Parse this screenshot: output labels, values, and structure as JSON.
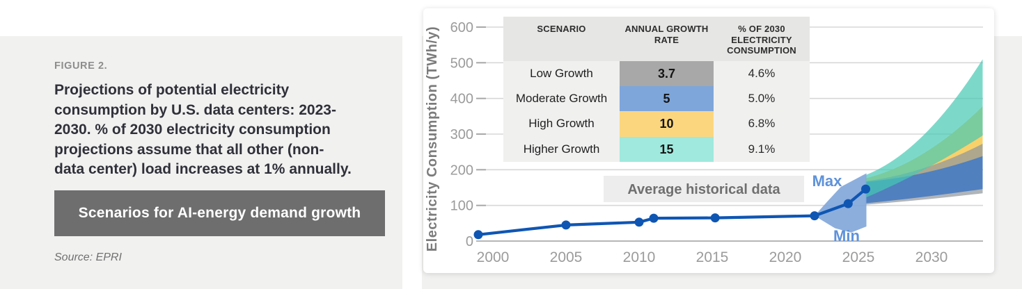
{
  "left_panel": {
    "figure_label": "FIGURE 2.",
    "title": "Projections of potential electricity\nconsumption by U.S. data centers: 2023-\n2030. % of 2030 electricity consumption\nprojections assume that all other (non-\ndata center) load increases at 1% annually.",
    "banner": "Scenarios for AI-energy demand growth",
    "source": "Source: EPRI"
  },
  "table": {
    "headers": [
      "SCENARIO",
      "ANNUAL GROWTH RATE",
      "% OF 2030 ELECTRICITY CONSUMPTION"
    ]
  },
  "labels": {
    "max": "Max",
    "min": "Min",
    "avg_historical": "Average historical data"
  },
  "colors": {
    "page_panel": "#f1f1f0",
    "card": "#ffffff",
    "gridline": "#d7d7d7",
    "axis_line": "#b6b6b6",
    "tick_text": "#9b9b9b",
    "axis_title_text": "#7c7c7c",
    "minmax_label_text": "#5e92da",
    "avg_box_bg": "#ededed",
    "avg_box_text": "#6f6f6f",
    "table_header_bg": "#e6e6e4",
    "table_body_bg": "#f0f0ef"
  },
  "chart_data": {
    "type": "line",
    "title": "",
    "xlabel": "",
    "ylabel": "Electricity Consumption (TWh/y)",
    "ylim": [
      0,
      600
    ],
    "yticks": [
      0,
      100,
      200,
      300,
      400,
      500,
      600
    ],
    "xticks": [
      2000,
      2005,
      2010,
      2015,
      2020,
      2025,
      2030
    ],
    "xlim": [
      1998.8,
      2033.5
    ],
    "grid": "horizontal",
    "legend_position": "none",
    "historical_series": {
      "name": "Average historical data",
      "color": "#0f56b3",
      "points": [
        [
          1999,
          18
        ],
        [
          2005,
          45
        ],
        [
          2010,
          53
        ],
        [
          2011,
          64
        ],
        [
          2015.2,
          65
        ],
        [
          2022,
          71
        ],
        [
          2024.3,
          105
        ],
        [
          2025.5,
          146
        ]
      ]
    },
    "minmax_envelope": {
      "color": "#82a7da",
      "opacity": 0.92,
      "label_max": "Max",
      "label_min": "Min",
      "points": [
        [
          2022,
          71
        ],
        [
          2022.9,
          112
        ],
        [
          2023.8,
          152
        ],
        [
          2025.0,
          178
        ],
        [
          2025.55,
          190
        ],
        [
          2025.55,
          41
        ],
        [
          2024.5,
          24
        ],
        [
          2023.4,
          36
        ]
      ]
    },
    "fan_start_year": 2025.5,
    "fan_end_year": 2033.5,
    "scenarios": [
      {
        "name": "Low Growth",
        "rate": "3.7",
        "pct_of_2030": "4.6%",
        "band_color": "#8e969c",
        "band_opacity": 0.7,
        "cell_color": "#a8a8a8",
        "start_range": [
          102,
          168
        ],
        "end_range": [
          134,
          273
        ]
      },
      {
        "name": "Moderate Growth",
        "rate": "5",
        "pct_of_2030": "5.0%",
        "band_color": "#4b7dc0",
        "band_opacity": 0.95,
        "cell_color": "#7ea6da",
        "start_range": [
          106,
          166
        ],
        "end_range": [
          146,
          238
        ]
      },
      {
        "name": "High Growth",
        "rate": "10",
        "pct_of_2030": "6.8%",
        "band_color": "#f9cf63",
        "band_opacity": 0.95,
        "cell_color": "#fbd67e",
        "start_range": [
          118,
          176
        ],
        "end_range": [
          165,
          378
        ]
      },
      {
        "name": "Higher Growth",
        "rate": "15",
        "pct_of_2030": "9.1%",
        "band_color": "#45c9b4",
        "band_opacity": 0.7,
        "cell_color": "#9fe9de",
        "start_range": [
          122,
          185
        ],
        "end_range": [
          296,
          510
        ]
      }
    ],
    "band_z_order": [
      2,
      0,
      1,
      3
    ]
  }
}
